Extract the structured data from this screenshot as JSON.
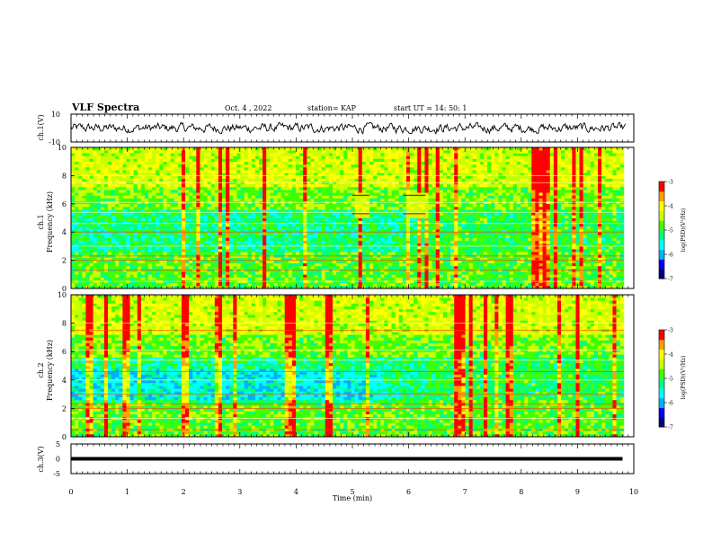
{
  "header": {
    "title": "VLF Spectra",
    "date": "Oct. 4 , 2022",
    "station": "station= KAP",
    "start": "start  UT =   14: 50: 1"
  },
  "colorbar": {
    "label": "log(PSD)(V²/Hz)",
    "ticks": [
      "-3",
      "-4",
      "-5",
      "-6",
      "-7"
    ],
    "colors": [
      "#000080",
      "#0000ff",
      "#00b0ff",
      "#00ffff",
      "#00ff80",
      "#40ff00",
      "#c8ff00",
      "#ffff00",
      "#ffa000",
      "#ff0000",
      "#ffffff"
    ]
  },
  "chart_data": [
    {
      "type": "line",
      "panel": "ch1-waveform",
      "ylabel": "ch.1(V)",
      "ylim": [
        -10,
        10
      ],
      "yticks": [
        "10",
        "-10"
      ],
      "xlim": [
        0,
        10
      ],
      "description_values": "noisy broadband waveform between about -3 and 3 V"
    },
    {
      "type": "heatmap",
      "panel": "ch1-spectrogram",
      "ylabel": "ch.1",
      "ylabel2": "Frequency (kHz)",
      "ylim": [
        0,
        10
      ],
      "yticks": [
        "10",
        "8",
        "6",
        "4",
        "2",
        "0"
      ],
      "xlim": [
        0,
        10
      ],
      "zlim": [
        -7,
        -3
      ],
      "bursts": [
        {
          "t0": 5.0,
          "t1": 5.3,
          "f0": 5.0,
          "f1": 6.8
        },
        {
          "t0": 5.9,
          "t1": 6.3,
          "f0": 5.0,
          "f1": 6.8
        }
      ]
    },
    {
      "type": "heatmap",
      "panel": "ch2-spectrogram",
      "ylabel": "ch.2",
      "ylabel2": "Frequency (kHz)",
      "ylim": [
        0,
        10
      ],
      "yticks": [
        "10",
        "8",
        "6",
        "4",
        "2",
        "0"
      ],
      "xlim": [
        0,
        10
      ],
      "zlim": [
        -7,
        -3
      ]
    },
    {
      "type": "line",
      "panel": "ch3-waveform",
      "ylabel": "ch.3(V)",
      "ylim": [
        -5,
        5
      ],
      "yticks": [
        "5",
        "0",
        "-5"
      ],
      "xlim": [
        0,
        9.8
      ],
      "values_note": "constant near 0 V",
      "xlabel": "Time (min)",
      "xticks": [
        "0",
        "1",
        "2",
        "3",
        "4",
        "5",
        "6",
        "7",
        "8",
        "9",
        "10"
      ]
    }
  ]
}
